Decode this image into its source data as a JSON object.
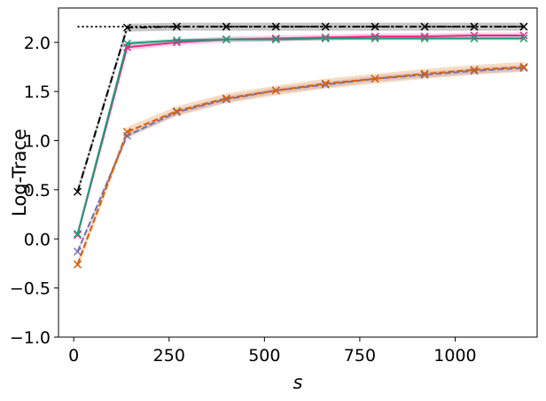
{
  "chart_data": {
    "type": "line",
    "xlabel": "s",
    "ylabel": "Log-Trace",
    "xlim": [
      -40,
      1215
    ],
    "ylim": [
      -1.0,
      2.35
    ],
    "xticks": [
      0,
      250,
      500,
      750,
      1000
    ],
    "xtick_labels": [
      "0",
      "250",
      "500",
      "750",
      "1000"
    ],
    "yticks": [
      -1.0,
      -0.5,
      0.0,
      0.5,
      1.0,
      1.5,
      2.0
    ],
    "ytick_labels": [
      "−1.0",
      "−0.5",
      "0.0",
      "0.5",
      "1.0",
      "1.5",
      "2.0"
    ],
    "grid": false,
    "x": [
      10,
      140,
      270,
      400,
      530,
      660,
      790,
      920,
      1050,
      1180
    ],
    "series": [
      {
        "color": "#000000",
        "dash": "dotted",
        "marker": "none",
        "band": false,
        "values": [
          2.16,
          2.16,
          2.16,
          2.16,
          2.16,
          2.16,
          2.16,
          2.16,
          2.16,
          2.16
        ]
      },
      {
        "color": "#000000",
        "dash": "dashdot",
        "marker": "x",
        "band": true,
        "band_width": 0.04,
        "values": [
          0.48,
          2.15,
          2.16,
          2.16,
          2.16,
          2.16,
          2.16,
          2.16,
          2.16,
          2.16
        ]
      },
      {
        "color": "#e7298a",
        "dash": "solid",
        "marker": "x",
        "band": true,
        "band_width": 0.03,
        "values": [
          0.04,
          1.95,
          2.0,
          2.03,
          2.04,
          2.05,
          2.06,
          2.06,
          2.07,
          2.07
        ]
      },
      {
        "color": "#1b9e77",
        "dash": "solid",
        "marker": "x",
        "band": true,
        "band_width": 0.02,
        "values": [
          0.05,
          1.99,
          2.02,
          2.03,
          2.03,
          2.04,
          2.04,
          2.04,
          2.04,
          2.04
        ]
      },
      {
        "color": "#7570b3",
        "dash": "dashed",
        "marker": "x",
        "band": true,
        "band_width": 0.03,
        "values": [
          -0.13,
          1.05,
          1.29,
          1.42,
          1.51,
          1.57,
          1.63,
          1.67,
          1.71,
          1.74
        ]
      },
      {
        "color": "#d95f02",
        "dash": "dashed",
        "marker": "x",
        "band": true,
        "band_width": 0.05,
        "values": [
          -0.26,
          1.09,
          1.3,
          1.43,
          1.51,
          1.58,
          1.63,
          1.68,
          1.72,
          1.75
        ]
      }
    ]
  }
}
